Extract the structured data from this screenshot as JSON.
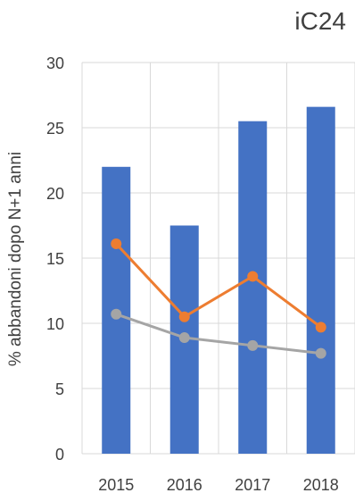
{
  "chart_data": {
    "type": "bar",
    "title": "iC24",
    "ylabel": "% abbandoni dopo N+1 anni",
    "xlabel": "",
    "categories": [
      "2015",
      "2016",
      "2017",
      "2018"
    ],
    "ylim": [
      0,
      30
    ],
    "yticks": [
      0,
      5,
      10,
      15,
      20,
      25,
      30
    ],
    "grid": true,
    "series": [
      {
        "type": "bar",
        "color": "#4472C4",
        "values": [
          22.0,
          17.5,
          25.5,
          26.6
        ]
      },
      {
        "type": "line",
        "color": "#ED7D31",
        "values": [
          16.1,
          10.5,
          13.6,
          9.7
        ]
      },
      {
        "type": "line",
        "color": "#A5A5A5",
        "values": [
          10.7,
          8.9,
          8.3,
          7.7
        ]
      }
    ]
  }
}
